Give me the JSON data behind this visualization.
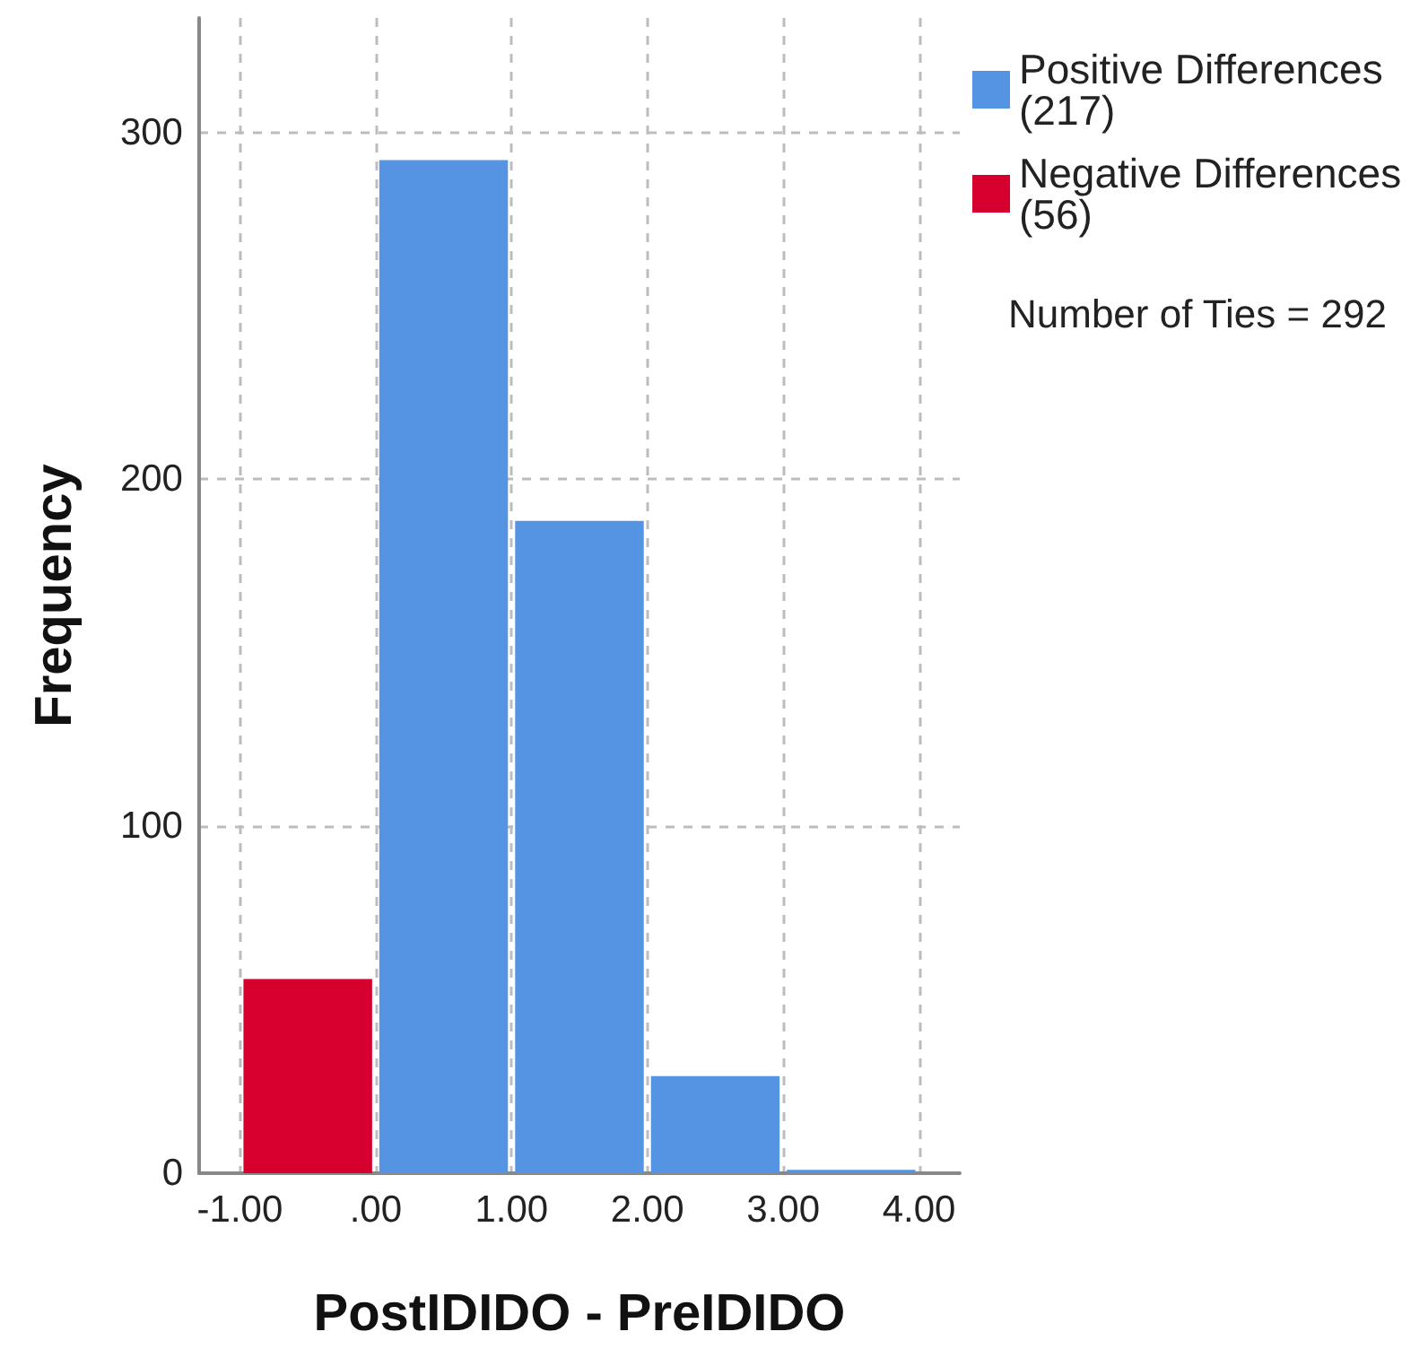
{
  "chart_data": {
    "type": "histogram",
    "xlabel": "PostIDIDO - PreIDIDO",
    "ylabel": "Frequency",
    "bins": [
      -1,
      0,
      1,
      2,
      3,
      4
    ],
    "series": [
      {
        "name": "Positive Differences (217)",
        "color": "#5594e3",
        "values": [
          null,
          292,
          188,
          28,
          1
        ]
      },
      {
        "name": "Negative Differences (56)",
        "color": "#d6002e",
        "values": [
          56,
          null,
          null,
          null,
          null
        ]
      }
    ],
    "xlim": [
      -1.3,
      4.3
    ],
    "xticks": [
      {
        "value": -1,
        "label": "-1.00"
      },
      {
        "value": 0,
        "label": ".00"
      },
      {
        "value": 1,
        "label": "1.00"
      },
      {
        "value": 2,
        "label": "2.00"
      },
      {
        "value": 3,
        "label": "3.00"
      },
      {
        "value": 4,
        "label": "4.00"
      }
    ],
    "ylim": [
      0,
      333
    ],
    "yticks": [
      0,
      100,
      200,
      300
    ],
    "grid": true,
    "legend": "top right",
    "annotations": [
      "Number of Ties = 292"
    ]
  }
}
